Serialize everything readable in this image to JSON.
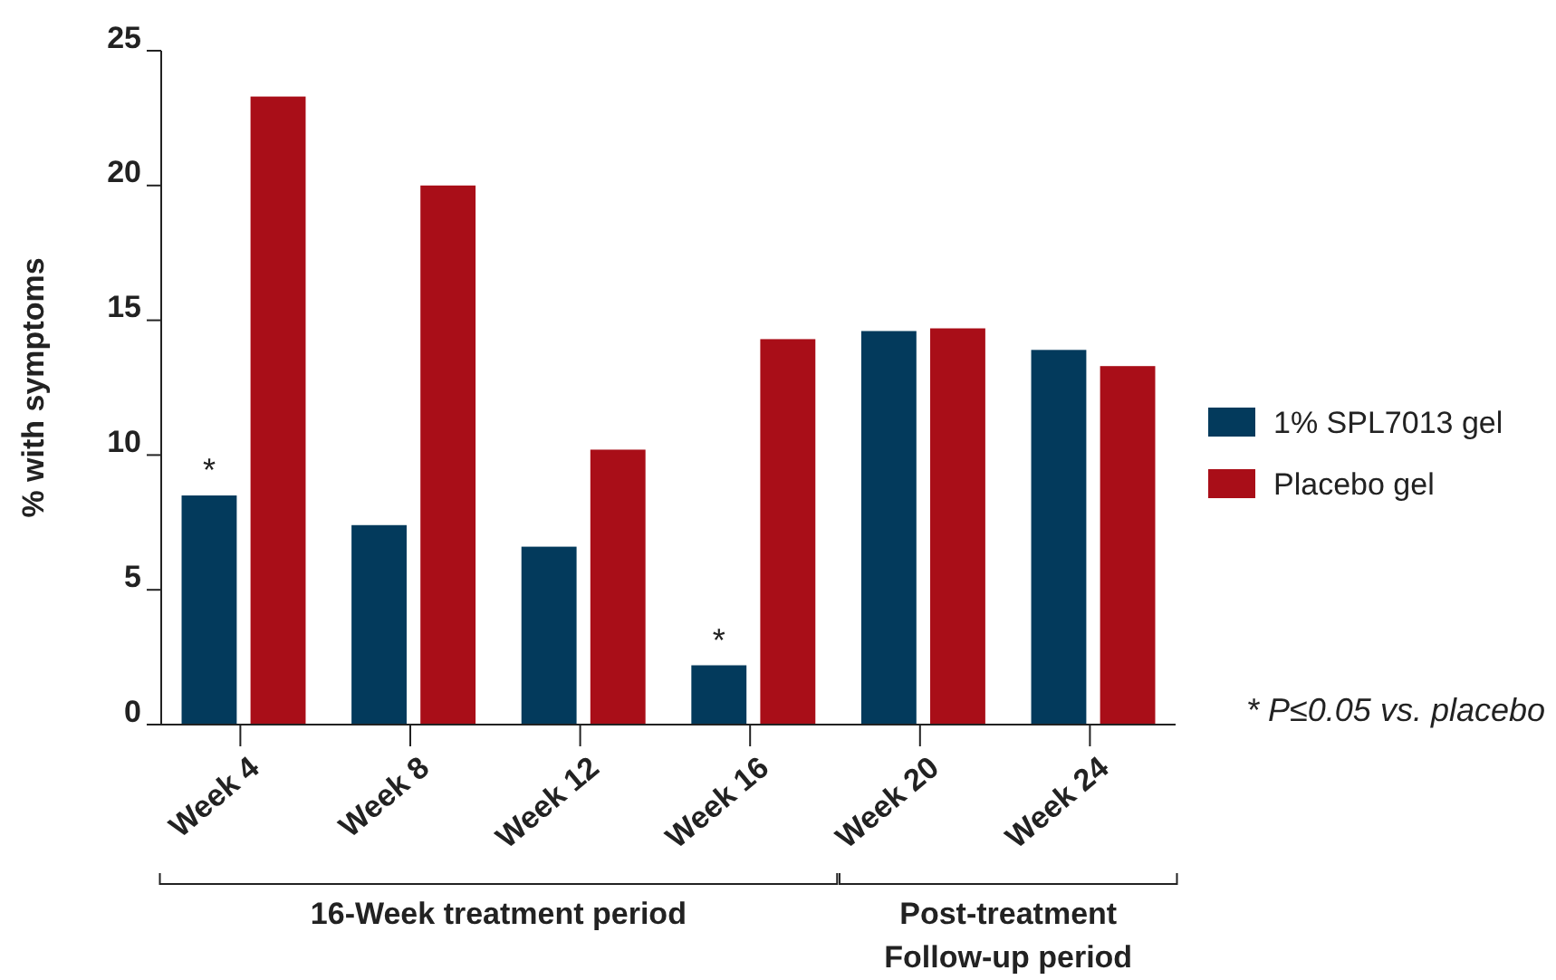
{
  "chart_data": {
    "type": "bar",
    "ylabel": "% with symptoms",
    "categories": [
      "Week 4",
      "Week 8",
      "Week 12",
      "Week 16",
      "Week 20",
      "Week 24"
    ],
    "series": [
      {
        "name": "1% SPL7013 gel",
        "color": "#033a5c",
        "values": [
          8.5,
          7.4,
          6.6,
          2.2,
          14.6,
          13.9
        ]
      },
      {
        "name": "Placebo gel",
        "color": "#a90e18",
        "values": [
          23.3,
          20.0,
          10.2,
          14.3,
          14.7,
          13.3
        ]
      }
    ],
    "ylim": [
      0,
      25
    ],
    "yticks": [
      0,
      5,
      10,
      15,
      20,
      25
    ],
    "grid": false,
    "legend": "right",
    "annotations": [
      {
        "text": "*",
        "x": "Week 4",
        "y": 8.5
      },
      {
        "text": "*",
        "x": "Week 16",
        "y": 2.2
      },
      "* P≤0.05 vs. placebo",
      "16-Week treatment period",
      "Post-treatment Follow-up period"
    ]
  }
}
